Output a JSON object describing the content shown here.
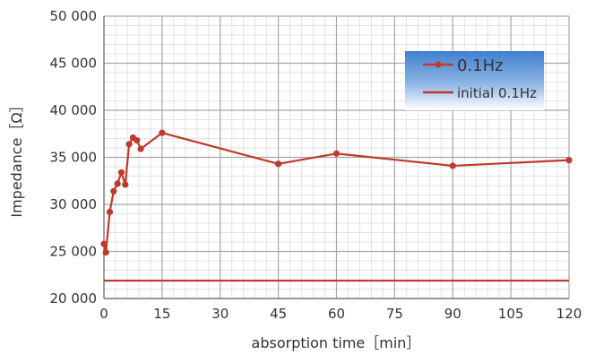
{
  "chart_data": {
    "type": "line",
    "xlabel": "absorption time［min］",
    "ylabel": "Impedance［Ω］",
    "xlim": [
      0,
      120
    ],
    "ylim": [
      20000,
      50000
    ],
    "x_ticks": [
      {
        "value": 0,
        "label": "0"
      },
      {
        "value": 15,
        "label": "15"
      },
      {
        "value": 30,
        "label": "30"
      },
      {
        "value": 45,
        "label": "45"
      },
      {
        "value": 60,
        "label": "60"
      },
      {
        "value": 75,
        "label": "75"
      },
      {
        "value": 90,
        "label": "90"
      },
      {
        "value": 105,
        "label": "105"
      },
      {
        "value": 120,
        "label": "120"
      }
    ],
    "y_ticks": [
      {
        "value": 20000,
        "label": "20 000"
      },
      {
        "value": 25000,
        "label": "25 000"
      },
      {
        "value": 30000,
        "label": "30 000"
      },
      {
        "value": 35000,
        "label": "35 000"
      },
      {
        "value": 40000,
        "label": "40 000"
      },
      {
        "value": 45000,
        "label": "45 000"
      },
      {
        "value": 50000,
        "label": "50 000"
      }
    ],
    "x_minor_step": 3,
    "y_minor_step": 1000,
    "grid": true,
    "legend_position": "top-right",
    "series": [
      {
        "name": "0.1Hz",
        "color": "#c0392b",
        "marker": "circle",
        "points": [
          {
            "x": 0,
            "y": 25800
          },
          {
            "x": 0.5,
            "y": 24900
          },
          {
            "x": 1.5,
            "y": 29200
          },
          {
            "x": 2.5,
            "y": 31400
          },
          {
            "x": 3.5,
            "y": 32200
          },
          {
            "x": 4.5,
            "y": 33400
          },
          {
            "x": 5.5,
            "y": 32100
          },
          {
            "x": 6.5,
            "y": 36400
          },
          {
            "x": 7.5,
            "y": 37100
          },
          {
            "x": 8.5,
            "y": 36800
          },
          {
            "x": 9.5,
            "y": 35900
          },
          {
            "x": 15,
            "y": 37600
          },
          {
            "x": 45,
            "y": 34300
          },
          {
            "x": 60,
            "y": 35400
          },
          {
            "x": 90,
            "y": 34100
          },
          {
            "x": 120,
            "y": 34700
          }
        ]
      },
      {
        "name": "initial 0.1Hz",
        "color": "#c0392b",
        "marker": "none",
        "points": [
          {
            "x": 0,
            "y": 21900
          },
          {
            "x": 120,
            "y": 21900
          }
        ]
      }
    ]
  }
}
